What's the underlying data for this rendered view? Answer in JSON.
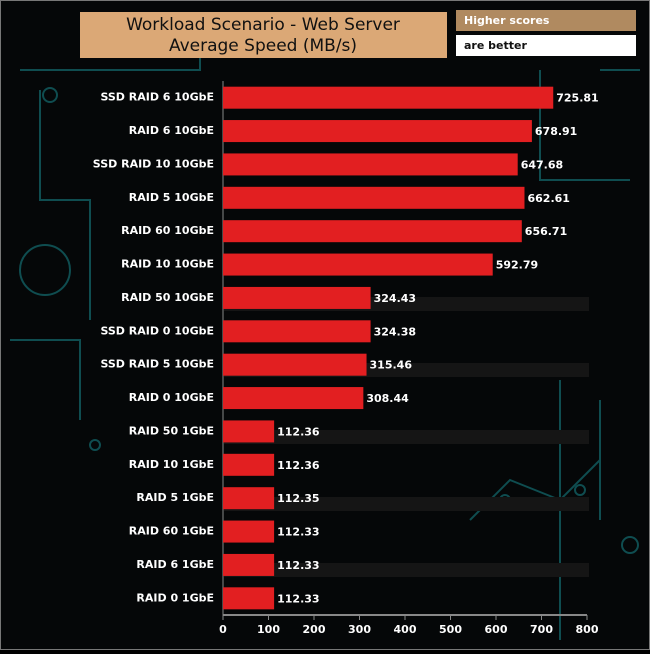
{
  "chart_data": {
    "type": "hbar",
    "title": "Workload Scenario - Web Server",
    "subtitle": "Average Speed (MB/s)",
    "annotations": [
      "Higher scores",
      "are better"
    ],
    "categories": [
      "SSD RAID 6 10GbE",
      "RAID 6 10GbE",
      "SSD RAID 10 10GbE",
      "RAID 5 10GbE",
      "RAID 60 10GbE",
      "RAID 10 10GbE",
      "RAID 50 10GbE",
      "SSD RAID 0 10GbE",
      "SSD RAID 5 10GbE",
      "RAID 0 10GbE",
      "RAID 50 1GbE",
      "RAID 10 1GbE",
      "RAID 5 1GbE",
      "RAID 60 1GbE",
      "RAID 6 1GbE",
      "RAID 0 1GbE"
    ],
    "values": [
      725.81,
      678.91,
      647.68,
      662.61,
      656.71,
      592.79,
      324.43,
      324.38,
      315.46,
      308.44,
      112.36,
      112.36,
      112.35,
      112.33,
      112.33,
      112.33
    ],
    "color": "#e21f21",
    "xlim": [
      0,
      800
    ],
    "xticks": [
      0,
      100,
      200,
      300,
      400,
      500,
      600,
      700,
      800
    ]
  }
}
